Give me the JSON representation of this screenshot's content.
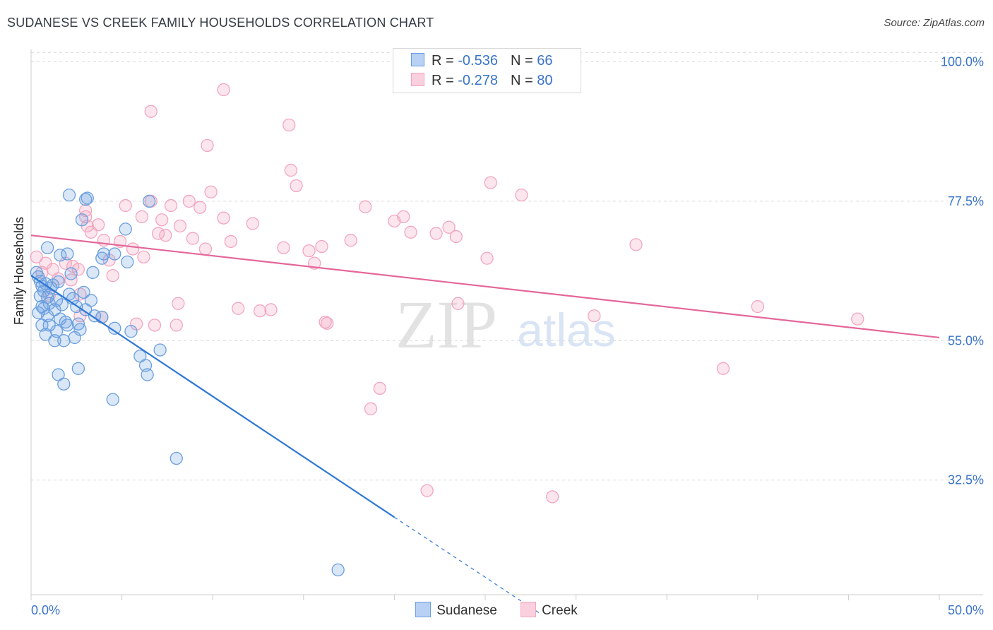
{
  "title": "SUDANESE VS CREEK FAMILY HOUSEHOLDS CORRELATION CHART",
  "source": "Source: ZipAtlas.com",
  "watermark": {
    "zip": "ZIP",
    "atlas": "atlas"
  },
  "legend_top": {
    "rows": [
      {
        "r_label": "R = ",
        "r_value": "-0.536",
        "n_label": "N = ",
        "n_value": "66"
      },
      {
        "r_label": "R = ",
        "r_value": "-0.278",
        "n_label": "N = ",
        "n_value": "80"
      }
    ]
  },
  "legend_bottom": {
    "items": [
      "Sudanese",
      "Creek"
    ]
  },
  "chart_data": {
    "type": "scatter",
    "title": "SUDANESE VS CREEK FAMILY HOUSEHOLDS CORRELATION CHART",
    "xlabel": "",
    "ylabel": "Family Households",
    "xlim": [
      0,
      50
    ],
    "ylim": [
      14,
      102
    ],
    "x_tick_labels": [
      "0.0%",
      "50.0%"
    ],
    "y_ticks": [
      32.5,
      55.0,
      77.5,
      100.0
    ],
    "y_tick_labels": [
      "32.5%",
      "55.0%",
      "77.5%",
      "100.0%"
    ],
    "grid": true,
    "colors": {
      "Sudanese": "#6a9fe0",
      "Creek": "#f3a6be",
      "Sudanese_line": "#2f78d6",
      "Creek_line": "#e4679a",
      "tick_text": "#3a74c9"
    },
    "series": [
      {
        "name": "Sudanese",
        "r": -0.536,
        "n": 66,
        "trend": {
          "x0": 0.0,
          "y0": 65.5,
          "x1": 20.0,
          "y1": 26.5,
          "dashed_to_x": 28.0,
          "dashed_to_y": 11.0
        },
        "points": [
          [
            0.3,
            66.0
          ],
          [
            0.4,
            65.3
          ],
          [
            0.5,
            64.6
          ],
          [
            0.6,
            63.8
          ],
          [
            0.7,
            63.0
          ],
          [
            0.5,
            62.2
          ],
          [
            0.9,
            62.0
          ],
          [
            1.1,
            63.5
          ],
          [
            0.8,
            64.2
          ],
          [
            1.2,
            64.0
          ],
          [
            1.5,
            64.5
          ],
          [
            1.0,
            61.0
          ],
          [
            1.3,
            60.0
          ],
          [
            0.9,
            59.0
          ],
          [
            1.6,
            58.5
          ],
          [
            0.4,
            59.5
          ],
          [
            0.6,
            57.5
          ],
          [
            1.4,
            56.5
          ],
          [
            0.8,
            56.0
          ],
          [
            1.9,
            58.0
          ],
          [
            2.1,
            62.5
          ],
          [
            2.3,
            61.8
          ],
          [
            2.5,
            60.5
          ],
          [
            1.7,
            60.8
          ],
          [
            2.0,
            57.5
          ],
          [
            2.4,
            55.5
          ],
          [
            1.8,
            55.0
          ],
          [
            2.7,
            56.8
          ],
          [
            3.0,
            60.0
          ],
          [
            3.3,
            61.5
          ],
          [
            2.9,
            62.8
          ],
          [
            2.2,
            65.8
          ],
          [
            1.6,
            68.8
          ],
          [
            2.0,
            69.0
          ],
          [
            3.4,
            66.0
          ],
          [
            3.9,
            68.3
          ],
          [
            4.0,
            69.0
          ],
          [
            4.6,
            69.0
          ],
          [
            5.3,
            67.7
          ],
          [
            0.9,
            70.0
          ],
          [
            2.8,
            74.5
          ],
          [
            3.0,
            77.8
          ],
          [
            2.1,
            78.5
          ],
          [
            3.1,
            78.0
          ],
          [
            5.2,
            73.0
          ],
          [
            6.5,
            77.5
          ],
          [
            3.5,
            59.0
          ],
          [
            5.5,
            56.5
          ],
          [
            4.6,
            57.0
          ],
          [
            6.0,
            52.5
          ],
          [
            7.1,
            53.5
          ],
          [
            6.3,
            51.0
          ],
          [
            1.3,
            55.0
          ],
          [
            1.5,
            49.5
          ],
          [
            1.8,
            48.0
          ],
          [
            2.6,
            50.5
          ],
          [
            4.5,
            45.5
          ],
          [
            6.4,
            49.5
          ],
          [
            2.6,
            57.7
          ],
          [
            3.9,
            58.8
          ],
          [
            1.0,
            57.5
          ],
          [
            0.7,
            60.2
          ],
          [
            1.4,
            61.5
          ],
          [
            0.6,
            60.5
          ],
          [
            8.0,
            36.0
          ],
          [
            16.9,
            18.0
          ]
        ]
      },
      {
        "name": "Creek",
        "r": -0.278,
        "n": 80,
        "trend": {
          "x0": 0.0,
          "y0": 72.0,
          "x1": 50.0,
          "y1": 55.5
        },
        "points": [
          [
            0.3,
            68.5
          ],
          [
            0.6,
            66.0
          ],
          [
            0.8,
            67.5
          ],
          [
            1.0,
            62.3
          ],
          [
            1.2,
            66.5
          ],
          [
            1.5,
            65.0
          ],
          [
            1.9,
            67.5
          ],
          [
            2.3,
            67.0
          ],
          [
            2.6,
            66.5
          ],
          [
            2.2,
            64.8
          ],
          [
            2.7,
            62.5
          ],
          [
            3.1,
            73.5
          ],
          [
            3.0,
            75.0
          ],
          [
            3.3,
            72.5
          ],
          [
            3.7,
            73.7
          ],
          [
            4.0,
            71.2
          ],
          [
            4.3,
            68.0
          ],
          [
            4.5,
            65.5
          ],
          [
            4.9,
            71.0
          ],
          [
            5.2,
            76.8
          ],
          [
            5.6,
            69.8
          ],
          [
            6.2,
            68.5
          ],
          [
            6.1,
            75.0
          ],
          [
            6.6,
            77.5
          ],
          [
            7.0,
            72.3
          ],
          [
            7.2,
            74.5
          ],
          [
            7.7,
            76.8
          ],
          [
            7.4,
            72.0
          ],
          [
            8.2,
            73.5
          ],
          [
            8.7,
            77.5
          ],
          [
            8.9,
            71.5
          ],
          [
            9.3,
            76.5
          ],
          [
            9.6,
            69.8
          ],
          [
            9.9,
            79.0
          ],
          [
            10.6,
            74.8
          ],
          [
            11.0,
            71.0
          ],
          [
            11.4,
            60.2
          ],
          [
            12.2,
            73.9
          ],
          [
            12.6,
            59.8
          ],
          [
            13.2,
            60.0
          ],
          [
            13.9,
            70.0
          ],
          [
            14.3,
            82.5
          ],
          [
            14.6,
            80.0
          ],
          [
            15.3,
            69.5
          ],
          [
            15.6,
            67.5
          ],
          [
            16.0,
            70.2
          ],
          [
            16.2,
            58.0
          ],
          [
            17.6,
            71.2
          ],
          [
            18.4,
            76.6
          ],
          [
            18.7,
            44.0
          ],
          [
            19.2,
            47.3
          ],
          [
            20.0,
            74.3
          ],
          [
            20.5,
            75.0
          ],
          [
            20.9,
            72.5
          ],
          [
            22.3,
            72.3
          ],
          [
            23.0,
            73.3
          ],
          [
            23.4,
            71.8
          ],
          [
            23.5,
            61.0
          ],
          [
            25.1,
            68.3
          ],
          [
            25.3,
            80.5
          ],
          [
            6.6,
            92.0
          ],
          [
            10.6,
            95.5
          ],
          [
            9.7,
            86.5
          ],
          [
            14.2,
            89.8
          ],
          [
            28.7,
            29.8
          ],
          [
            2.7,
            59.0
          ],
          [
            8.1,
            61.0
          ],
          [
            6.8,
            57.5
          ],
          [
            3.9,
            58.8
          ],
          [
            8.0,
            57.5
          ],
          [
            16.3,
            57.8
          ],
          [
            21.8,
            30.8
          ],
          [
            31.0,
            59.0
          ],
          [
            33.3,
            70.5
          ],
          [
            38.1,
            50.5
          ],
          [
            40.0,
            60.5
          ],
          [
            45.5,
            58.5
          ],
          [
            27.0,
            78.5
          ],
          [
            3.0,
            76.0
          ],
          [
            5.8,
            57.7
          ]
        ]
      }
    ]
  }
}
